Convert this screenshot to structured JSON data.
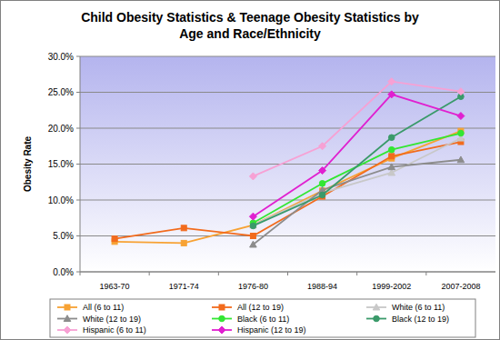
{
  "chart_data": {
    "type": "line",
    "title": "Child Obesity Statistics & Teenage Obesity Statistics by\nAge and Race/Ethnicity",
    "y_label": "Obesity Rate",
    "categories": [
      "1963-70",
      "1971-74",
      "1976-80",
      "1988-94",
      "1999-2002",
      "2007-2008"
    ],
    "ylim": [
      0,
      30
    ],
    "yticks": [
      {
        "value": 0,
        "label": "0.0%"
      },
      {
        "value": 5,
        "label": "5.0%"
      },
      {
        "value": 10,
        "label": "10.0%"
      },
      {
        "value": 15,
        "label": "15.0%"
      },
      {
        "value": 20,
        "label": "20.0%"
      },
      {
        "value": 25,
        "label": "25.0%"
      },
      {
        "value": 30,
        "label": "30.0%"
      }
    ],
    "grid": true,
    "legend": "bottom",
    "series": [
      {
        "name": "All (6 to 11)",
        "color": "#f7a234",
        "marker": "square",
        "values": [
          4.2,
          4.0,
          6.5,
          11.3,
          15.8,
          19.6
        ]
      },
      {
        "name": "All (12 to 19)",
        "color": "#f26b1d",
        "marker": "square",
        "values": [
          4.6,
          6.1,
          5.0,
          10.5,
          16.1,
          18.1
        ]
      },
      {
        "name": "White (6 to 11)",
        "color": "#c8c8c8",
        "marker": "triangle",
        "values": [
          null,
          null,
          6.5,
          11.0,
          13.8,
          18.6
        ]
      },
      {
        "name": "White (12 to 19)",
        "color": "#8c8c8c",
        "marker": "triangle",
        "values": [
          null,
          null,
          3.8,
          11.4,
          14.6,
          15.6
        ]
      },
      {
        "name": "Black (6 to 11)",
        "color": "#33e633",
        "marker": "circle",
        "values": [
          null,
          null,
          6.8,
          12.3,
          17.0,
          19.3
        ]
      },
      {
        "name": "Black (12 to 19)",
        "color": "#3a9a6a",
        "marker": "circle",
        "values": [
          null,
          null,
          6.4,
          10.7,
          18.7,
          24.4
        ]
      },
      {
        "name": "Hispanic (6 to 11)",
        "color": "#f7a1d4",
        "marker": "diamond",
        "values": [
          null,
          null,
          13.3,
          17.5,
          26.5,
          25.1
        ]
      },
      {
        "name": "Hispanic (12 to 19)",
        "color": "#e020d0",
        "marker": "diamond",
        "values": [
          null,
          null,
          7.7,
          14.1,
          24.7,
          21.7
        ]
      }
    ]
  }
}
